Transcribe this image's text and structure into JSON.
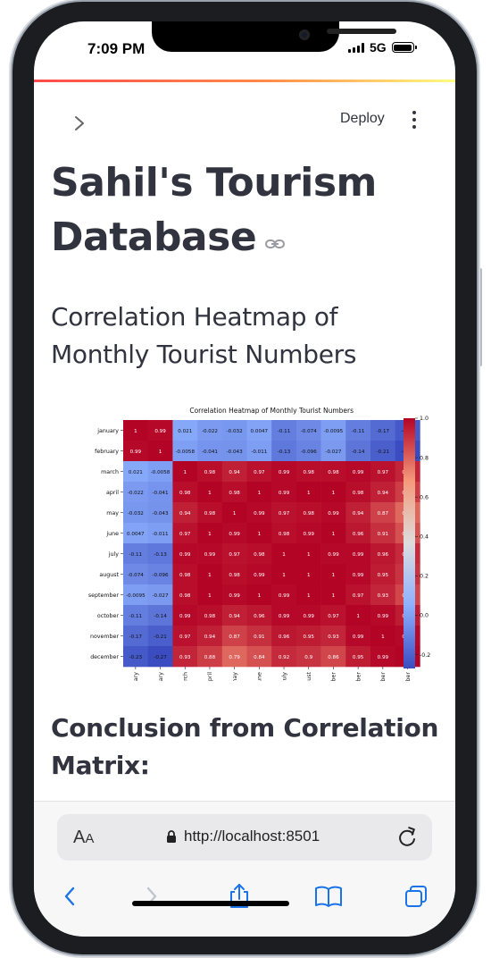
{
  "status": {
    "time": "7:09 PM",
    "network": "5G"
  },
  "header": {
    "deploy_label": "Deploy"
  },
  "page": {
    "title": "Sahil's Tourism Database",
    "subtitle": "Correlation Heatmap of Monthly Tourist Numbers",
    "conclusion_heading": "Conclusion from Correlation Matrix:"
  },
  "browser": {
    "text_size_label": "AA",
    "url": "http://localhost:8501"
  },
  "colors": {
    "accent_red": "#ff4b4b",
    "text": "#31333f",
    "link_blue": "#1a73e8"
  },
  "icons": [
    "chevron-right-icon",
    "more-vertical-icon",
    "link-icon",
    "lock-icon",
    "reload-icon",
    "back-icon",
    "forward-icon",
    "share-icon",
    "bookmarks-icon",
    "tabs-icon"
  ],
  "chart_data": {
    "type": "heatmap",
    "title": "Correlation Heatmap of Monthly Tourist Numbers",
    "row_labels": [
      "january",
      "february",
      "march",
      "april",
      "may",
      "june",
      "july",
      "august",
      "september",
      "october",
      "november",
      "december"
    ],
    "col_labels": [
      "january",
      "february",
      "march",
      "april",
      "may",
      "june",
      "july",
      "august",
      "september",
      "october",
      "november",
      "december"
    ],
    "cell_labels": [
      [
        "1",
        "0.99",
        "0.021",
        "-0.022",
        "-0.032",
        "0.0047",
        "-0.11",
        "-0.074",
        "-0.0095",
        "-0.11",
        "-0.17",
        "-0.23"
      ],
      [
        "0.99",
        "1",
        "-0.0058",
        "-0.041",
        "-0.043",
        "-0.011",
        "-0.13",
        "-0.096",
        "-0.027",
        "-0.14",
        "-0.21",
        "-0.27"
      ],
      [
        "0.021",
        "-0.0058",
        "1",
        "0.98",
        "0.94",
        "0.97",
        "0.99",
        "0.98",
        "0.98",
        "0.99",
        "0.97",
        "0.93"
      ],
      [
        "-0.022",
        "-0.041",
        "0.98",
        "1",
        "0.98",
        "1",
        "0.99",
        "1",
        "1",
        "0.98",
        "0.94",
        "0.88"
      ],
      [
        "-0.032",
        "-0.043",
        "0.94",
        "0.98",
        "1",
        "0.99",
        "0.97",
        "0.98",
        "0.99",
        "0.94",
        "0.87",
        "0.79"
      ],
      [
        "0.0047",
        "-0.011",
        "0.97",
        "1",
        "0.99",
        "1",
        "0.98",
        "0.99",
        "1",
        "0.96",
        "0.91",
        "0.84"
      ],
      [
        "-0.11",
        "-0.13",
        "0.99",
        "0.99",
        "0.97",
        "0.98",
        "1",
        "1",
        "0.99",
        "0.99",
        "0.96",
        "0.92"
      ],
      [
        "-0.074",
        "-0.096",
        "0.98",
        "1",
        "0.98",
        "0.99",
        "1",
        "1",
        "1",
        "0.99",
        "0.95",
        "0.9"
      ],
      [
        "-0.0095",
        "-0.027",
        "0.98",
        "1",
        "0.99",
        "1",
        "0.99",
        "1",
        "1",
        "0.97",
        "0.93",
        "0.86"
      ],
      [
        "-0.11",
        "-0.14",
        "0.99",
        "0.98",
        "0.94",
        "0.96",
        "0.99",
        "0.99",
        "0.97",
        "1",
        "0.99",
        "0.95"
      ],
      [
        "-0.17",
        "-0.21",
        "0.97",
        "0.94",
        "0.87",
        "0.91",
        "0.96",
        "0.95",
        "0.93",
        "0.99",
        "1",
        "0.99"
      ],
      [
        "-0.23",
        "-0.27",
        "0.93",
        "0.88",
        "0.79",
        "0.84",
        "0.92",
        "0.9",
        "0.86",
        "0.95",
        "0.99",
        "1"
      ]
    ],
    "colorbar": {
      "min": -0.27,
      "max": 1.0,
      "ticks": [
        "1.0",
        "0.8",
        "0.6",
        "0.4",
        "0.2",
        "0.0",
        "-0.2"
      ],
      "colormap": "coolwarm"
    }
  }
}
